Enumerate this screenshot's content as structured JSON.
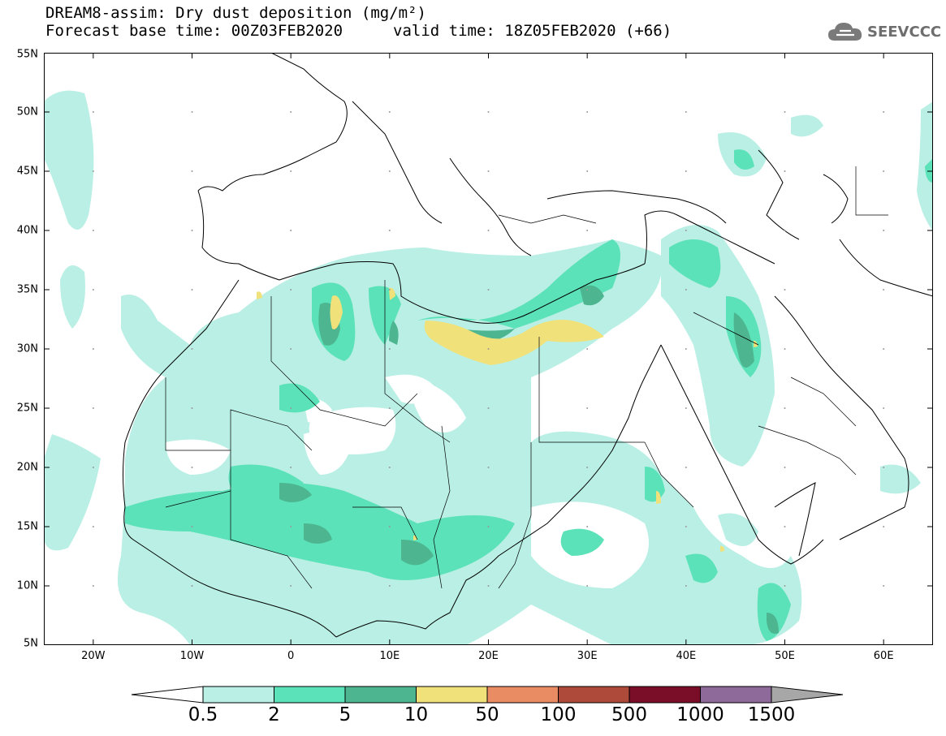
{
  "title": {
    "line1": "DREAM8-assim: Dry dust deposition (mg/m²)",
    "line2_left": "Forecast base time: 00Z03FEB2020",
    "line2_right": "valid time: 18Z05FEB2020 (+66)"
  },
  "logo": {
    "icon": "cloud-icon",
    "text": "SEEVCCC"
  },
  "map": {
    "lon_range": [
      -25,
      65
    ],
    "lat_range": [
      5,
      55
    ],
    "lat_labels": [
      "55N",
      "50N",
      "45N",
      "40N",
      "35N",
      "30N",
      "25N",
      "20N",
      "15N",
      "10N",
      "5N"
    ],
    "lat_values": [
      55,
      50,
      45,
      40,
      35,
      30,
      25,
      20,
      15,
      10,
      5
    ],
    "lon_labels": [
      "20W",
      "10W",
      "0",
      "10E",
      "20E",
      "30E",
      "40E",
      "50E",
      "60E"
    ],
    "lon_values": [
      -20,
      -10,
      0,
      10,
      20,
      30,
      40,
      50,
      60
    ]
  },
  "colorbar": {
    "labels": [
      "0.5",
      "2",
      "5",
      "10",
      "50",
      "100",
      "500",
      "1000",
      "1500"
    ],
    "colors": [
      "#ffffff",
      "#b9efe4",
      "#5ce2b8",
      "#4db690",
      "#f1e17a",
      "#e98b63",
      "#ad4a3a",
      "#7a0e29",
      "#8e6a9a",
      "#a7a7a7"
    ]
  }
}
